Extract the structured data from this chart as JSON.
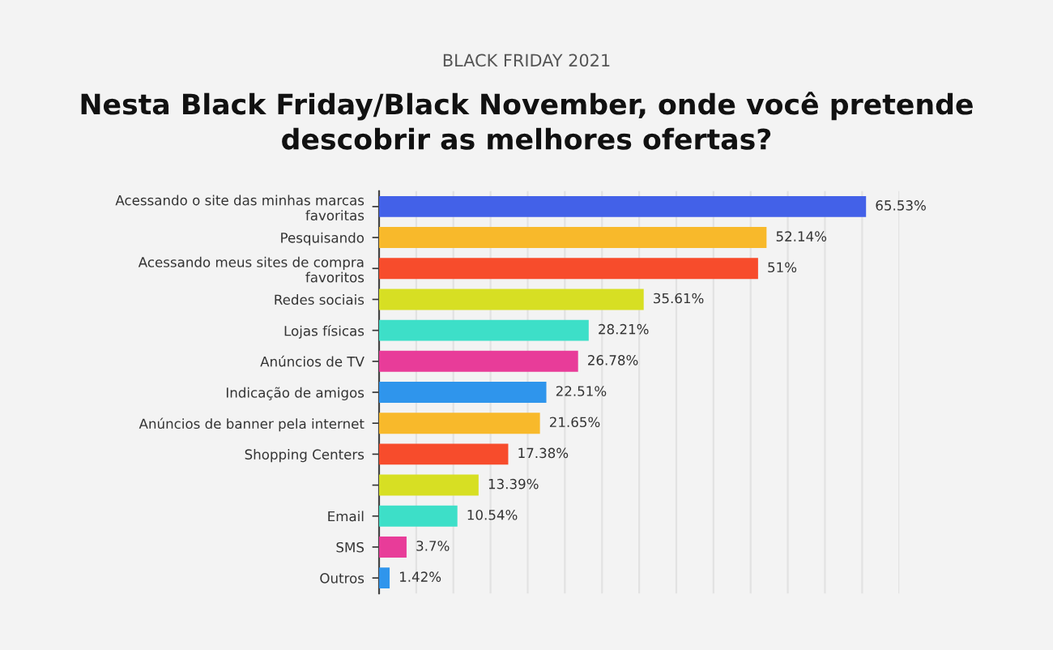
{
  "chart_data": {
    "type": "bar",
    "orientation": "horizontal",
    "subtitle": "BLACK FRIDAY 2021",
    "title": "Nesta Black Friday/Black November, onde você pretende\ndescobrir as melhores ofertas?",
    "categories": [
      "Acessando o site das minhas marcas\nfavoritas",
      "Pesquisando",
      "Acessando meus sites de compra\nfavoritos",
      "Redes sociais",
      "Lojas físicas",
      "Anúncios de TV",
      "Indicação de amigos",
      "Anúncios de banner pela internet",
      "Shopping Centers",
      null,
      "Email",
      "SMS",
      "Outros"
    ],
    "values": [
      65.53,
      52.14,
      51,
      35.61,
      28.21,
      26.78,
      22.51,
      21.65,
      17.38,
      13.39,
      10.54,
      3.7,
      1.42
    ],
    "value_labels": [
      "65.53%",
      "52.14%",
      "51%",
      "35.61%",
      "28.21%",
      "26.78%",
      "22.51%",
      "21.65%",
      "17.38%",
      "13.39%",
      "10.54%",
      "3.7%",
      "1.42%"
    ],
    "colors": [
      "#4361e8",
      "#f8b92b",
      "#f74c2c",
      "#d7df23",
      "#3ddfc8",
      "#e83c99",
      "#2f95ec",
      "#f8b92b",
      "#f74c2c",
      "#d7df23",
      "#3ddfc8",
      "#e83c99",
      "#2f95ec"
    ],
    "xlim": [
      0,
      70
    ],
    "xticks": [
      {
        "value": 0,
        "label": null
      },
      {
        "value": 5,
        "label": null
      },
      {
        "value": 10,
        "label": null
      },
      {
        "value": 15,
        "label": null
      },
      {
        "value": 20,
        "label": null
      },
      {
        "value": 25,
        "label": null
      },
      {
        "value": 30,
        "label": null
      },
      {
        "value": 35,
        "label": null
      },
      {
        "value": 40,
        "label": null
      },
      {
        "value": 45,
        "label": null
      },
      {
        "value": 50,
        "label": null
      },
      {
        "value": 55,
        "label": null
      },
      {
        "value": 60,
        "label": null
      },
      {
        "value": 65,
        "label": null
      },
      {
        "value": 70,
        "label": null
      }
    ],
    "grid": "x",
    "tick_labels": "y"
  }
}
